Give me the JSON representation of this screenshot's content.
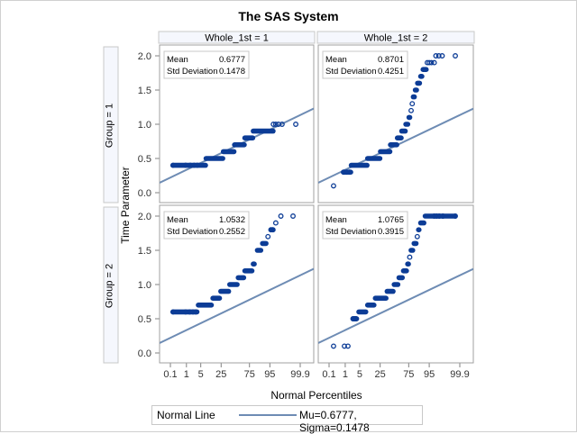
{
  "chart_data": {
    "type": "scatter",
    "title": "The SAS System",
    "xlabel": "Normal Percentiles",
    "ylabel": "Time Parameter",
    "x_ticks": [
      "0.1",
      "1",
      "5",
      "25",
      "75",
      "95",
      "99.9"
    ],
    "x_tick_values": [
      0.1,
      1,
      5,
      25,
      75,
      95,
      99.9
    ],
    "y_ticks": [
      "0.0",
      "0.5",
      "1.0",
      "1.5",
      "2.0"
    ],
    "y_tick_values": [
      0,
      0.5,
      1.0,
      1.5,
      2.0
    ],
    "ylim": [
      -0.08,
      2.08
    ],
    "column_var_labels": [
      "Whole_1st = 1",
      "Whole_1st = 2"
    ],
    "row_var_labels": [
      "Group = 1",
      "Group = 2"
    ],
    "stat_labels": {
      "mean": "Mean",
      "std": "Std Deviation"
    },
    "panels": [
      {
        "row": 0,
        "col": 0,
        "mean": "0.6777",
        "std": "0.1478",
        "line": {
          "mu": 0.6777,
          "sigma": 0.1478
        },
        "clusters": [
          {
            "y": 0.4,
            "p_from": 0.15,
            "p_to": 8,
            "sparse": [
              0.15,
              0.9,
              1.6,
              2.5,
              3.5
            ]
          },
          {
            "y": 0.5,
            "p_from": 8,
            "p_to": 28,
            "sparse": []
          },
          {
            "y": 0.6,
            "p_from": 28,
            "p_to": 48,
            "sparse": []
          },
          {
            "y": 0.7,
            "p_from": 48,
            "p_to": 67,
            "sparse": []
          },
          {
            "y": 0.8,
            "p_from": 67,
            "p_to": 80,
            "sparse": []
          },
          {
            "y": 0.9,
            "p_from": 80,
            "p_to": 96.5,
            "sparse": []
          },
          {
            "y": 1.0,
            "p_from": 96.5,
            "p_to": 99.8,
            "sparse": [
              96.5,
              97.3,
              98,
              98.7,
              99.8
            ]
          }
        ]
      },
      {
        "row": 0,
        "col": 1,
        "mean": "0.8701",
        "std": "0.4251",
        "line": {
          "mu": 0.6777,
          "sigma": 0.1478
        },
        "clusters": [
          {
            "y": 0.1,
            "p_from": 0.2,
            "p_to": 0.2,
            "sparse": [
              0.2
            ]
          },
          {
            "y": 0.3,
            "p_from": 0.8,
            "p_to": 2,
            "sparse": [
              0.8,
              1.2,
              1.7
            ]
          },
          {
            "y": 0.4,
            "p_from": 2,
            "p_to": 10,
            "sparse": []
          },
          {
            "y": 0.5,
            "p_from": 10,
            "p_to": 25,
            "sparse": []
          },
          {
            "y": 0.6,
            "p_from": 25,
            "p_to": 42,
            "sparse": []
          },
          {
            "y": 0.7,
            "p_from": 42,
            "p_to": 55,
            "sparse": []
          },
          {
            "y": 0.8,
            "p_from": 55,
            "p_to": 63,
            "sparse": []
          },
          {
            "y": 0.9,
            "p_from": 63,
            "p_to": 70,
            "sparse": []
          },
          {
            "y": 1.0,
            "p_from": 70,
            "p_to": 74,
            "sparse": []
          },
          {
            "y": 1.1,
            "p_from": 75,
            "p_to": 77,
            "sparse": []
          },
          {
            "y": 1.2,
            "p_from": 78,
            "p_to": 79,
            "sparse": [
              78.5
            ]
          },
          {
            "y": 1.3,
            "p_from": 80,
            "p_to": 80,
            "sparse": [
              80
            ]
          },
          {
            "y": 1.4,
            "p_from": 81,
            "p_to": 83,
            "sparse": []
          },
          {
            "y": 1.5,
            "p_from": 83.5,
            "p_to": 85.5,
            "sparse": []
          },
          {
            "y": 1.6,
            "p_from": 86,
            "p_to": 88.5,
            "sparse": []
          },
          {
            "y": 1.7,
            "p_from": 89,
            "p_to": 90.5,
            "sparse": []
          },
          {
            "y": 1.8,
            "p_from": 91,
            "p_to": 93.5,
            "sparse": []
          },
          {
            "y": 1.9,
            "p_from": 94,
            "p_to": 97,
            "sparse": [
              94,
              95,
              96,
              97
            ]
          },
          {
            "y": 2.0,
            "p_from": 97.5,
            "p_to": 99.8,
            "sparse": [
              97.5,
              98.2,
              98.8,
              99.8
            ]
          }
        ]
      },
      {
        "row": 1,
        "col": 0,
        "mean": "1.0532",
        "std": "0.2552",
        "line": {
          "mu": 0.6777,
          "sigma": 0.1478
        },
        "clusters": [
          {
            "y": 0.6,
            "p_from": 0.15,
            "p_to": 3.5,
            "sparse": [
              0.15,
              0.9,
              1.5,
              2.2,
              3.0
            ]
          },
          {
            "y": 0.7,
            "p_from": 3.8,
            "p_to": 13,
            "sparse": []
          },
          {
            "y": 0.8,
            "p_from": 14,
            "p_to": 23,
            "sparse": []
          },
          {
            "y": 0.9,
            "p_from": 24,
            "p_to": 38,
            "sparse": []
          },
          {
            "y": 1.0,
            "p_from": 39,
            "p_to": 54,
            "sparse": []
          },
          {
            "y": 1.1,
            "p_from": 55,
            "p_to": 66,
            "sparse": []
          },
          {
            "y": 1.2,
            "p_from": 67,
            "p_to": 79,
            "sparse": []
          },
          {
            "y": 1.3,
            "p_from": 80,
            "p_to": 82,
            "sparse": []
          },
          {
            "y": 1.4,
            "p_from": 83,
            "p_to": 84,
            "sparse": []
          },
          {
            "y": 1.5,
            "p_from": 85,
            "p_to": 89,
            "sparse": []
          },
          {
            "y": 1.6,
            "p_from": 90,
            "p_to": 93,
            "sparse": []
          },
          {
            "y": 1.7,
            "p_from": 94,
            "p_to": 94,
            "sparse": [
              94
            ]
          },
          {
            "y": 1.8,
            "p_from": 95.5,
            "p_to": 96.5,
            "sparse": [
              95.5,
              96.3
            ]
          },
          {
            "y": 1.9,
            "p_from": 97.3,
            "p_to": 97.3,
            "sparse": [
              97.3
            ]
          },
          {
            "y": 2.0,
            "p_from": 98.5,
            "p_to": 99.7,
            "sparse": [
              98.5,
              99.7
            ]
          }
        ]
      },
      {
        "row": 1,
        "col": 1,
        "mean": "1.0765",
        "std": "0.3915",
        "line": {
          "mu": 0.6777,
          "sigma": 0.1478
        },
        "clusters": [
          {
            "y": 0.1,
            "p_from": 0.2,
            "p_to": 1.4,
            "sparse": [
              0.2,
              0.9,
              1.4
            ]
          },
          {
            "y": 0.5,
            "p_from": 2.5,
            "p_to": 3.8,
            "sparse": [
              2.5,
              3.0,
              3.5
            ]
          },
          {
            "y": 0.6,
            "p_from": 4.5,
            "p_to": 9,
            "sparse": []
          },
          {
            "y": 0.7,
            "p_from": 10,
            "p_to": 17,
            "sparse": []
          },
          {
            "y": 0.8,
            "p_from": 18,
            "p_to": 35,
            "sparse": []
          },
          {
            "y": 0.9,
            "p_from": 36,
            "p_to": 48,
            "sparse": []
          },
          {
            "y": 1.0,
            "p_from": 49,
            "p_to": 57,
            "sparse": []
          },
          {
            "y": 1.1,
            "p_from": 58,
            "p_to": 65,
            "sparse": []
          },
          {
            "y": 1.2,
            "p_from": 66,
            "p_to": 72,
            "sparse": []
          },
          {
            "y": 1.3,
            "p_from": 73,
            "p_to": 75,
            "sparse": []
          },
          {
            "y": 1.4,
            "p_from": 76,
            "p_to": 77,
            "sparse": [
              76.5
            ]
          },
          {
            "y": 1.5,
            "p_from": 78,
            "p_to": 81,
            "sparse": []
          },
          {
            "y": 1.6,
            "p_from": 82,
            "p_to": 85,
            "sparse": []
          },
          {
            "y": 1.7,
            "p_from": 86,
            "p_to": 86,
            "sparse": [
              86
            ]
          },
          {
            "y": 1.8,
            "p_from": 87,
            "p_to": 88,
            "sparse": []
          },
          {
            "y": 1.9,
            "p_from": 89,
            "p_to": 92,
            "sparse": []
          },
          {
            "y": 2.0,
            "p_from": 92.5,
            "p_to": 99.8,
            "sparse": [
              97,
              97.7,
              98.3,
              98.9,
              99.8
            ]
          }
        ]
      }
    ],
    "legend": {
      "position": "bottom",
      "title": "Normal Line",
      "entry": "Mu=0.6777, Sigma=0.1478"
    }
  },
  "colors": {
    "marker": "#0c3c96",
    "normal_line": "#6e8cb4",
    "header_fill": "#f5f7fd",
    "frame": "#a0a0a0"
  }
}
